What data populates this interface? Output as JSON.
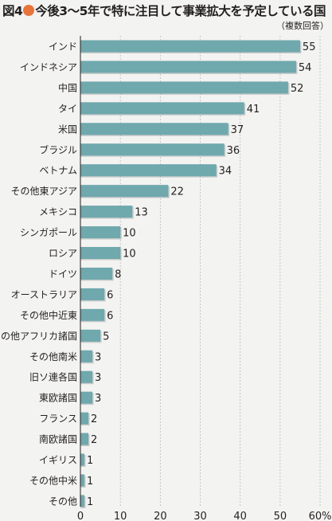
{
  "header": {
    "figure_label": "図4",
    "title": "今後3〜5年で特に注目して事業拡大を予定している国",
    "note": "（複数回答）",
    "accent": "#e8743b"
  },
  "chart_data": {
    "type": "bar",
    "orientation": "horizontal",
    "categories": [
      "インド",
      "インドネシア",
      "中国",
      "タイ",
      "米国",
      "ブラジル",
      "ベトナム",
      "その他東アジア",
      "メキシコ",
      "シンガポール",
      "ロシア",
      "ドイツ",
      "オーストラリア",
      "その他中近東",
      "その他アフリカ諸国",
      "その他南米",
      "旧ソ連各国",
      "東欧諸国",
      "フランス",
      "南欧諸国",
      "イギリス",
      "その他中米",
      "その他"
    ],
    "values": [
      55,
      54,
      52,
      41,
      37,
      36,
      34,
      22,
      13,
      10,
      10,
      8,
      6,
      6,
      5,
      3,
      3,
      3,
      2,
      2,
      1,
      1,
      1
    ],
    "value_labels": [
      "55",
      "54",
      "52",
      "41",
      "37",
      "36",
      "34",
      "22",
      "13",
      "10",
      "10",
      "8",
      "6",
      "6",
      "5",
      "3",
      "3",
      "3",
      "2",
      "2",
      "1",
      "1",
      "1"
    ],
    "xlim": [
      0,
      60
    ],
    "xticks": [
      "0",
      "10",
      "20",
      "30",
      "40",
      "50",
      "60%"
    ],
    "grid": true,
    "bar_color": "#6fa8ad"
  }
}
